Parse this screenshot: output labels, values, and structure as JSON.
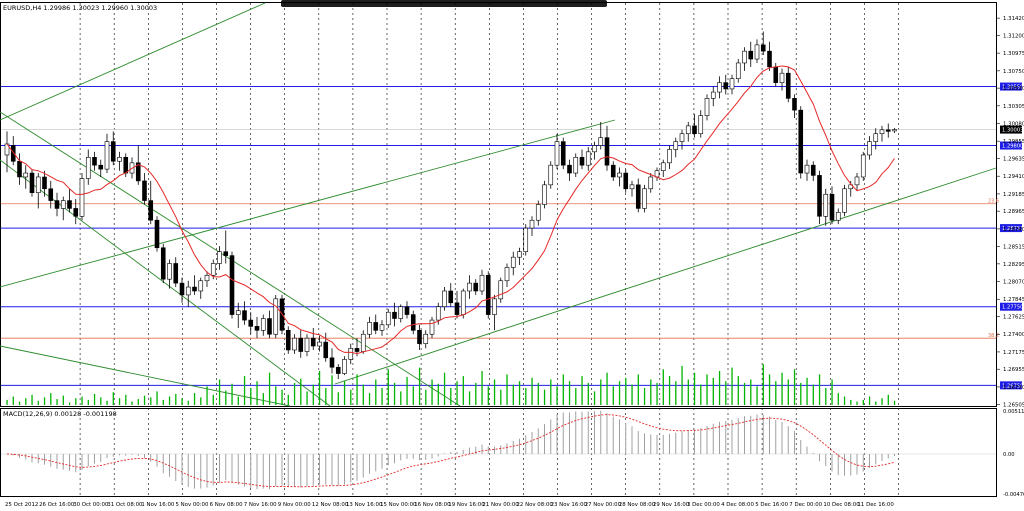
{
  "chart_data": [
    {
      "type": "candlestick",
      "title": "EURUSD,H4  1.29986 1.30023 1.29960 1.30003",
      "symbol": "EURUSD",
      "timeframe": "H4",
      "ohlc_readout": {
        "open": "1.29986",
        "high": "1.30023",
        "low": "1.29960",
        "close": "1.30003"
      },
      "current_price_tag": "1.30003",
      "y_tick_labels": [
        "1.31420",
        "1.31200",
        "1.30975",
        "1.30750",
        "1.30530",
        "1.30305",
        "1.30080",
        "1.29855",
        "1.29635",
        "1.29410",
        "1.29185",
        "1.28965",
        "1.28740",
        "1.28515",
        "1.28295",
        "1.28070",
        "1.27845",
        "1.27625",
        "1.27400",
        "1.27175",
        "1.26955",
        "1.26730",
        "1.26505"
      ],
      "ylim": [
        1.265,
        1.316
      ],
      "x_tick_labels": [
        "25 Oct 2012",
        "26 Oct 16:00",
        "30 Oct 00:00",
        "31 Oct 08:00",
        "1 Nov 16:00",
        "5 Nov 00:00",
        "6 Nov 08:00",
        "7 Nov 16:00",
        "9 Nov 00:00",
        "12 Nov 08:00",
        "13 Nov 16:00",
        "15 Nov 00:00",
        "16 Nov 08:00",
        "19 Nov 16:00",
        "21 Nov 00:00",
        "22 Nov 08:00",
        "23 Nov 16:00",
        "27 Nov 00:00",
        "28 Nov 08:00",
        "29 Nov 16:00",
        "3 Dec 00:00",
        "4 Dec 08:00",
        "5 Dec 16:00",
        "7 Dec 00:00",
        "10 Dec 08:00",
        "11 Dec 16:00"
      ],
      "grid": true,
      "horizontal_levels": [
        {
          "price": 1.3055,
          "label": "1.30550",
          "color": "#1e1ee6"
        },
        {
          "price": 1.298,
          "label": "1.29800",
          "color": "#1e1ee6"
        },
        {
          "price": 1.2875,
          "label": "1.28750",
          "color": "#1e1ee6"
        },
        {
          "price": 1.2775,
          "label": "1.27750",
          "color": "#1e1ee6"
        },
        {
          "price": 1.2675,
          "label": "1.26750",
          "color": "#1e1ee6"
        }
      ],
      "fibo_levels": [
        {
          "price": 1.2906,
          "label": "23.6",
          "color": "#e07050"
        },
        {
          "price": 1.2735,
          "label": "38.2",
          "color": "#e07050"
        }
      ],
      "candles": [
        [
          1.2968,
          1.2998,
          1.2946,
          1.2982
        ],
        [
          1.298,
          1.2992,
          1.2955,
          1.296
        ],
        [
          1.296,
          1.297,
          1.293,
          1.294
        ],
        [
          1.294,
          1.2955,
          1.2925,
          1.2945
        ],
        [
          1.2945,
          1.295,
          1.2915,
          1.292
        ],
        [
          1.292,
          1.2945,
          1.29,
          1.294
        ],
        [
          1.294,
          1.2948,
          1.2915,
          1.2925
        ],
        [
          1.2925,
          1.2935,
          1.29,
          1.291
        ],
        [
          1.291,
          1.292,
          1.289,
          1.29
        ],
        [
          1.29,
          1.2915,
          1.2885,
          1.291
        ],
        [
          1.291,
          1.2925,
          1.2895,
          1.29
        ],
        [
          1.29,
          1.2912,
          1.288,
          1.289
        ],
        [
          1.289,
          1.2945,
          1.2885,
          1.2938
        ],
        [
          1.2938,
          1.2975,
          1.293,
          1.2965
        ],
        [
          1.2965,
          1.2972,
          1.2948,
          1.2955
        ],
        [
          1.2955,
          1.2962,
          1.294,
          1.295
        ],
        [
          1.295,
          1.2995,
          1.2945,
          1.2985
        ],
        [
          1.2985,
          1.2998,
          1.2955,
          1.296
        ],
        [
          1.296,
          1.2972,
          1.2948,
          1.2965
        ],
        [
          1.2965,
          1.297,
          1.294,
          1.2945
        ],
        [
          1.2945,
          1.2965,
          1.2938,
          1.2958
        ],
        [
          1.2958,
          1.298,
          1.293,
          1.2935
        ],
        [
          1.2935,
          1.2945,
          1.2905,
          1.291
        ],
        [
          1.291,
          1.2935,
          1.288,
          1.2885
        ],
        [
          1.2885,
          1.289,
          1.2845,
          1.285
        ],
        [
          1.285,
          1.2855,
          1.2805,
          1.281
        ],
        [
          1.281,
          1.2835,
          1.2798,
          1.283
        ],
        [
          1.283,
          1.2838,
          1.28,
          1.2805
        ],
        [
          1.2805,
          1.2812,
          1.278,
          1.279
        ],
        [
          1.279,
          1.2808,
          1.2775,
          1.28
        ],
        [
          1.28,
          1.2815,
          1.279,
          1.2795
        ],
        [
          1.2795,
          1.2812,
          1.2785,
          1.2808
        ],
        [
          1.2808,
          1.282,
          1.28,
          1.2815
        ],
        [
          1.2815,
          1.2835,
          1.281,
          1.283
        ],
        [
          1.283,
          1.2852,
          1.2822,
          1.2845
        ],
        [
          1.2845,
          1.2872,
          1.283,
          1.284
        ],
        [
          1.284,
          1.2845,
          1.276,
          1.2765
        ],
        [
          1.2765,
          1.278,
          1.2748,
          1.277
        ],
        [
          1.277,
          1.2782,
          1.2752,
          1.2758
        ],
        [
          1.2758,
          1.2768,
          1.274,
          1.275
        ],
        [
          1.275,
          1.2762,
          1.2735,
          1.2745
        ],
        [
          1.2745,
          1.2765,
          1.2738,
          1.276
        ],
        [
          1.276,
          1.277,
          1.2735,
          1.274
        ],
        [
          1.274,
          1.279,
          1.2735,
          1.2785
        ],
        [
          1.2785,
          1.279,
          1.274,
          1.2745
        ],
        [
          1.2745,
          1.275,
          1.2715,
          1.272
        ],
        [
          1.272,
          1.274,
          1.2715,
          1.2735
        ],
        [
          1.2735,
          1.2745,
          1.271,
          1.2718
        ],
        [
          1.2718,
          1.274,
          1.2712,
          1.2735
        ],
        [
          1.2735,
          1.2748,
          1.272,
          1.2725
        ],
        [
          1.2725,
          1.2738,
          1.2718,
          1.273
        ],
        [
          1.273,
          1.2742,
          1.2705,
          1.271
        ],
        [
          1.271,
          1.2722,
          1.269,
          1.2698
        ],
        [
          1.2698,
          1.2702,
          1.2683,
          1.269
        ],
        [
          1.269,
          1.2712,
          1.2688,
          1.2708
        ],
        [
          1.2708,
          1.2728,
          1.2702,
          1.2722
        ],
        [
          1.2722,
          1.2735,
          1.2712,
          1.2718
        ],
        [
          1.2718,
          1.2745,
          1.2715,
          1.274
        ],
        [
          1.274,
          1.2762,
          1.2735,
          1.2755
        ],
        [
          1.2755,
          1.2765,
          1.274,
          1.2745
        ],
        [
          1.2745,
          1.2758,
          1.2738,
          1.2752
        ],
        [
          1.2752,
          1.2772,
          1.2748,
          1.2768
        ],
        [
          1.2768,
          1.278,
          1.275,
          1.276
        ],
        [
          1.276,
          1.2778,
          1.2755,
          1.2775
        ],
        [
          1.2775,
          1.2782,
          1.276,
          1.2765
        ],
        [
          1.2765,
          1.277,
          1.274,
          1.2745
        ],
        [
          1.2745,
          1.2752,
          1.272,
          1.2728
        ],
        [
          1.2728,
          1.2745,
          1.2722,
          1.274
        ],
        [
          1.274,
          1.2762,
          1.2735,
          1.2758
        ],
        [
          1.2758,
          1.278,
          1.2752,
          1.2775
        ],
        [
          1.2775,
          1.28,
          1.277,
          1.2795
        ],
        [
          1.2795,
          1.2805,
          1.2775,
          1.278
        ],
        [
          1.278,
          1.2795,
          1.276,
          1.2765
        ],
        [
          1.2765,
          1.2798,
          1.276,
          1.2795
        ],
        [
          1.2795,
          1.2815,
          1.2785,
          1.2805
        ],
        [
          1.2805,
          1.281,
          1.279,
          1.2795
        ],
        [
          1.2795,
          1.2822,
          1.279,
          1.2815
        ],
        [
          1.2815,
          1.282,
          1.276,
          1.2765
        ],
        [
          1.2765,
          1.279,
          1.2745,
          1.2785
        ],
        [
          1.2785,
          1.2812,
          1.278,
          1.2808
        ],
        [
          1.2808,
          1.283,
          1.28,
          1.2825
        ],
        [
          1.2825,
          1.2845,
          1.2815,
          1.2838
        ],
        [
          1.2838,
          1.285,
          1.2828,
          1.2845
        ],
        [
          1.2845,
          1.288,
          1.284,
          1.2875
        ],
        [
          1.2875,
          1.289,
          1.2865,
          1.2885
        ],
        [
          1.2885,
          1.291,
          1.2878,
          1.2905
        ],
        [
          1.2905,
          1.2935,
          1.29,
          1.293
        ],
        [
          1.293,
          1.296,
          1.2925,
          1.2955
        ],
        [
          1.2955,
          1.2995,
          1.295,
          1.2985
        ],
        [
          1.2985,
          1.299,
          1.295,
          1.2955
        ],
        [
          1.2955,
          1.2962,
          1.2935,
          1.2945
        ],
        [
          1.2945,
          1.297,
          1.294,
          1.2965
        ],
        [
          1.2965,
          1.2975,
          1.295,
          1.2955
        ],
        [
          1.2955,
          1.2978,
          1.2948,
          1.2972
        ],
        [
          1.2972,
          1.2985,
          1.2962,
          1.298
        ],
        [
          1.298,
          1.301,
          1.2975,
          1.299
        ],
        [
          1.299,
          1.3005,
          1.2948,
          1.2955
        ],
        [
          1.2955,
          1.296,
          1.2935,
          1.294
        ],
        [
          1.294,
          1.2952,
          1.2928,
          1.2945
        ],
        [
          1.2945,
          1.295,
          1.292,
          1.2925
        ],
        [
          1.2925,
          1.2935,
          1.2915,
          1.293
        ],
        [
          1.293,
          1.2938,
          1.2895,
          1.29
        ],
        [
          1.29,
          1.293,
          1.2895,
          1.2925
        ],
        [
          1.2925,
          1.2945,
          1.292,
          1.294
        ],
        [
          1.294,
          1.2952,
          1.2935,
          1.2948
        ],
        [
          1.2948,
          1.2962,
          1.294,
          1.2958
        ],
        [
          1.2958,
          1.298,
          1.295,
          1.2975
        ],
        [
          1.2975,
          1.299,
          1.2965,
          1.2985
        ],
        [
          1.2985,
          1.3,
          1.2975,
          1.2995
        ],
        [
          1.2995,
          1.301,
          1.2985,
          1.3005
        ],
        [
          1.3005,
          1.302,
          1.299,
          1.2995
        ],
        [
          1.2995,
          1.3025,
          1.299,
          1.3018
        ],
        [
          1.3018,
          1.3045,
          1.3012,
          1.304
        ],
        [
          1.304,
          1.3055,
          1.303,
          1.3048
        ],
        [
          1.3048,
          1.3068,
          1.304,
          1.306
        ],
        [
          1.306,
          1.307,
          1.3045,
          1.3052
        ],
        [
          1.3052,
          1.307,
          1.3045,
          1.3065
        ],
        [
          1.3065,
          1.309,
          1.306,
          1.3085
        ],
        [
          1.3085,
          1.3105,
          1.3075,
          1.31
        ],
        [
          1.31,
          1.3112,
          1.308,
          1.309
        ],
        [
          1.309,
          1.3115,
          1.3085,
          1.3108
        ],
        [
          1.3108,
          1.3125,
          1.3095,
          1.31
        ],
        [
          1.31,
          1.3112,
          1.3075,
          1.308
        ],
        [
          1.308,
          1.3085,
          1.3055,
          1.306
        ],
        [
          1.306,
          1.3078,
          1.305,
          1.3072
        ],
        [
          1.3072,
          1.308,
          1.3035,
          1.304
        ],
        [
          1.304,
          1.3045,
          1.3015,
          1.3025
        ],
        [
          1.3025,
          1.303,
          1.2938,
          1.2945
        ],
        [
          1.2945,
          1.2962,
          1.2935,
          1.2955
        ],
        [
          1.2955,
          1.296,
          1.2935,
          1.2942
        ],
        [
          1.2942,
          1.2948,
          1.288,
          1.289
        ],
        [
          1.289,
          1.2925,
          1.2878,
          1.2918
        ],
        [
          1.2918,
          1.2928,
          1.288,
          1.2885
        ],
        [
          1.2885,
          1.29,
          1.288,
          1.2895
        ],
        [
          1.2895,
          1.293,
          1.289,
          1.2925
        ],
        [
          1.2925,
          1.2935,
          1.2915,
          1.293
        ],
        [
          1.293,
          1.2945,
          1.2922,
          1.294
        ],
        [
          1.294,
          1.2972,
          1.2935,
          1.2968
        ],
        [
          1.2968,
          1.2992,
          1.2962,
          1.2985
        ],
        [
          1.2985,
          1.3002,
          1.2975,
          1.2995
        ],
        [
          1.2995,
          1.3005,
          1.2985,
          1.3
        ],
        [
          1.3,
          1.3008,
          1.299,
          1.2998
        ],
        [
          1.29986,
          1.30023,
          1.2996,
          1.30003
        ]
      ],
      "ma_color": "#e62828",
      "volume_color": "#00b400",
      "up_color": "#ffffff",
      "down_color": "#000000"
    },
    {
      "type": "line",
      "title": "MACD(12,26,9) 0.00128 -0.001198",
      "y_tick_labels": [
        "0.005110",
        "0.00",
        "-0.00476"
      ],
      "ylim": [
        -0.00476,
        0.00511
      ],
      "histogram_color": "#a0a0a0",
      "signal_color": "#e62828"
    }
  ]
}
